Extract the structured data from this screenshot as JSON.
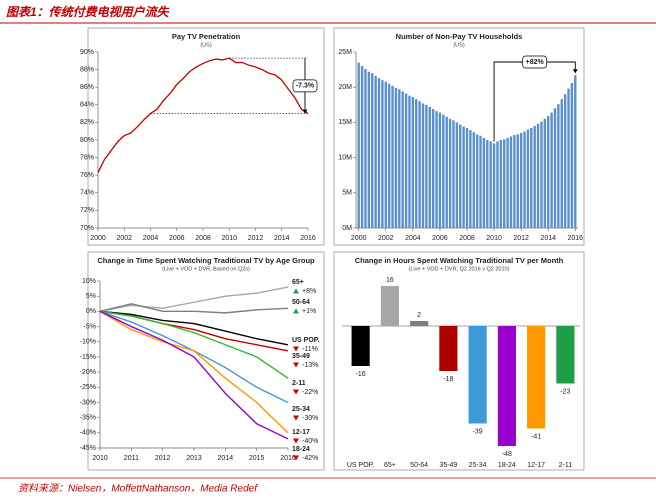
{
  "header": {
    "title": "图表1：传统付费电视用户流失"
  },
  "footer": {
    "text": "资料来源：Nielsen，MoffettNathanson，Media Redef"
  },
  "chart_data": [
    {
      "type": "line",
      "title": "Pay TV Penetration",
      "subtitle": "(US)",
      "color": "#c00000",
      "x": [
        2000,
        2000.5,
        2001,
        2001.5,
        2002,
        2002.5,
        2003,
        2003.5,
        2004,
        2004.5,
        2005,
        2005.5,
        2006,
        2006.5,
        2007,
        2007.5,
        2008,
        2008.5,
        2009,
        2009.5,
        2010,
        2010.5,
        2011,
        2011.5,
        2012,
        2012.5,
        2013,
        2013.5,
        2014,
        2014.5,
        2015,
        2015.5,
        2016
      ],
      "values": [
        76.3,
        77.8,
        78.8,
        79.8,
        80.5,
        80.8,
        81.5,
        82.3,
        83,
        83.5,
        84.5,
        85.3,
        86.3,
        87,
        87.8,
        88.3,
        88.7,
        89,
        89.2,
        89.1,
        89.3,
        88.8,
        88.8,
        88.5,
        88.3,
        88,
        87.6,
        87.4,
        86.8,
        85.8,
        84.8,
        83.5,
        83
      ],
      "xlim": [
        2000,
        2016
      ],
      "xticks": [
        2000,
        2002,
        2004,
        2006,
        2008,
        2010,
        2012,
        2014,
        2016
      ],
      "ylim": [
        70,
        90
      ],
      "yticks": [
        {
          "value": 70,
          "label": "70%"
        },
        {
          "value": 72,
          "label": "72%"
        },
        {
          "value": 74,
          "label": "74%"
        },
        {
          "value": 76,
          "label": "76%"
        },
        {
          "value": 78,
          "label": "78%"
        },
        {
          "value": 80,
          "label": "80%"
        },
        {
          "value": 82,
          "label": "82%"
        },
        {
          "value": 84,
          "label": "84%"
        },
        {
          "value": 86,
          "label": "86%"
        },
        {
          "value": 88,
          "label": "88%"
        },
        {
          "value": 90,
          "label": "90%"
        }
      ],
      "annotation": "-7.3%"
    },
    {
      "type": "bar",
      "title": "Number of Non-Pay TV Households",
      "subtitle": "(US)",
      "color": "#5a8fd0",
      "x": [
        2000,
        2000.25,
        2000.5,
        2000.75,
        2001,
        2001.25,
        2001.5,
        2001.75,
        2002,
        2002.25,
        2002.5,
        2002.75,
        2003,
        2003.25,
        2003.5,
        2003.75,
        2004,
        2004.25,
        2004.5,
        2004.75,
        2005,
        2005.25,
        2005.5,
        2005.75,
        2006,
        2006.25,
        2006.5,
        2006.75,
        2007,
        2007.25,
        2007.5,
        2007.75,
        2008,
        2008.25,
        2008.5,
        2008.75,
        2009,
        2009.25,
        2009.5,
        2009.75,
        2010,
        2010.25,
        2010.5,
        2010.75,
        2011,
        2011.25,
        2011.5,
        2011.75,
        2012,
        2012.25,
        2012.5,
        2012.75,
        2013,
        2013.25,
        2013.5,
        2013.75,
        2014,
        2014.25,
        2014.5,
        2014.75,
        2015,
        2015.25,
        2015.5,
        2015.75,
        2016
      ],
      "values": [
        23.5,
        23.0,
        22.6,
        22.2,
        22.0,
        21.6,
        21.3,
        21.0,
        20.8,
        20.5,
        20.2,
        19.9,
        19.7,
        19.4,
        19.1,
        18.8,
        18.6,
        18.3,
        18.0,
        17.7,
        17.5,
        17.2,
        16.9,
        16.6,
        16.4,
        16.1,
        15.8,
        15.5,
        15.3,
        15.0,
        14.7,
        14.4,
        14.2,
        13.9,
        13.6,
        13.3,
        13.1,
        12.8,
        12.5,
        12.3,
        12.0,
        12.3,
        12.5,
        12.6,
        12.8,
        13.0,
        13.2,
        13.3,
        13.5,
        13.7,
        14.0,
        14.2,
        14.5,
        14.8,
        15.1,
        15.5,
        15.9,
        16.4,
        17.0,
        17.6,
        18.3,
        19.0,
        19.8,
        20.6,
        21.7
      ],
      "xlim": [
        1999.8,
        2016.2
      ],
      "xticks": [
        2000,
        2002,
        2004,
        2006,
        2008,
        2010,
        2012,
        2014,
        2016
      ],
      "ylim": [
        0,
        25
      ],
      "yticks": [
        {
          "value": 0,
          "label": "0M"
        },
        {
          "value": 5,
          "label": "5M"
        },
        {
          "value": 10,
          "label": "10M"
        },
        {
          "value": 15,
          "label": "15M"
        },
        {
          "value": 20,
          "label": "20M"
        },
        {
          "value": 25,
          "label": "25M"
        }
      ],
      "annotation": "+82%"
    },
    {
      "type": "line",
      "title": "Change in Time Spent Watching Traditional TV by Age Group",
      "subtitle": "(Live + VOD + DVR, Based on Q2s)",
      "x": [
        2010,
        2011,
        2012,
        2013,
        2014,
        2015,
        2016
      ],
      "xlim": [
        2010,
        2016
      ],
      "xticks": [
        2010,
        2011,
        2012,
        2013,
        2014,
        2015,
        2016
      ],
      "ylim": [
        -45,
        10
      ],
      "yticks": [
        {
          "value": 10,
          "label": "10%"
        },
        {
          "value": 5,
          "label": "5%"
        },
        {
          "value": 0,
          "label": "0%"
        },
        {
          "value": -5,
          "label": "-5%"
        },
        {
          "value": -10,
          "label": "-10%"
        },
        {
          "value": -15,
          "label": "-15%"
        },
        {
          "value": -20,
          "label": "-20%"
        },
        {
          "value": -25,
          "label": "-25%"
        },
        {
          "value": -30,
          "label": "-30%"
        },
        {
          "value": -35,
          "label": "-35%"
        },
        {
          "value": -40,
          "label": "-40%"
        },
        {
          "value": -45,
          "label": "-45%"
        }
      ],
      "series": [
        {
          "name": "65+",
          "color": "#a6a6a6",
          "values": [
            0,
            2,
            1,
            3,
            5,
            6,
            8
          ],
          "end_label": "+8%"
        },
        {
          "name": "50-64",
          "color": "#7f7f7f",
          "values": [
            0,
            2.5,
            0,
            0,
            -0.5,
            0.5,
            1
          ],
          "end_label": "+1%"
        },
        {
          "name": "US POP.",
          "color": "#000000",
          "values": [
            0,
            -1,
            -3,
            -4,
            -6.5,
            -9,
            -11
          ],
          "end_label": "-11%"
        },
        {
          "name": "35-49",
          "color": "#c00000",
          "values": [
            0,
            -1.5,
            -4,
            -6,
            -9,
            -11,
            -13
          ],
          "end_label": "-13%"
        },
        {
          "name": "2-11",
          "color": "#2eb82e",
          "values": [
            0,
            -1.5,
            -4,
            -7,
            -11,
            -15,
            -22
          ],
          "end_label": "-22%"
        },
        {
          "name": "25-34",
          "color": "#3d9ad9",
          "values": [
            0,
            -3.5,
            -8,
            -13,
            -18.5,
            -25,
            -30
          ],
          "end_label": "-30%"
        },
        {
          "name": "12-17",
          "color": "#ff9900",
          "values": [
            0,
            -6,
            -10,
            -13,
            -22,
            -30,
            -40
          ],
          "end_label": "-40%"
        },
        {
          "name": "18-24",
          "color": "#9900cc",
          "values": [
            0,
            -5,
            -9.5,
            -15,
            -27,
            -37,
            -42
          ],
          "end_label": "-42%"
        }
      ]
    },
    {
      "type": "bar",
      "title": "Change in Hours Spent Watching Traditional TV per Month",
      "subtitle": "(Live + VOD + DVR, Q2 2016 v Q2 2010)",
      "categories": [
        "US POP.",
        "65+",
        "50-64",
        "35-49",
        "25-34",
        "18-24",
        "12-17",
        "2-11"
      ],
      "values": [
        -16,
        16,
        2,
        -18,
        -39,
        -48,
        -41,
        -23
      ],
      "colors": [
        "#000000",
        "#a6a6a6",
        "#7f7f7f",
        "#b00000",
        "#3d9ad9",
        "#9900cc",
        "#ff9900",
        "#1f9e48"
      ]
    }
  ]
}
